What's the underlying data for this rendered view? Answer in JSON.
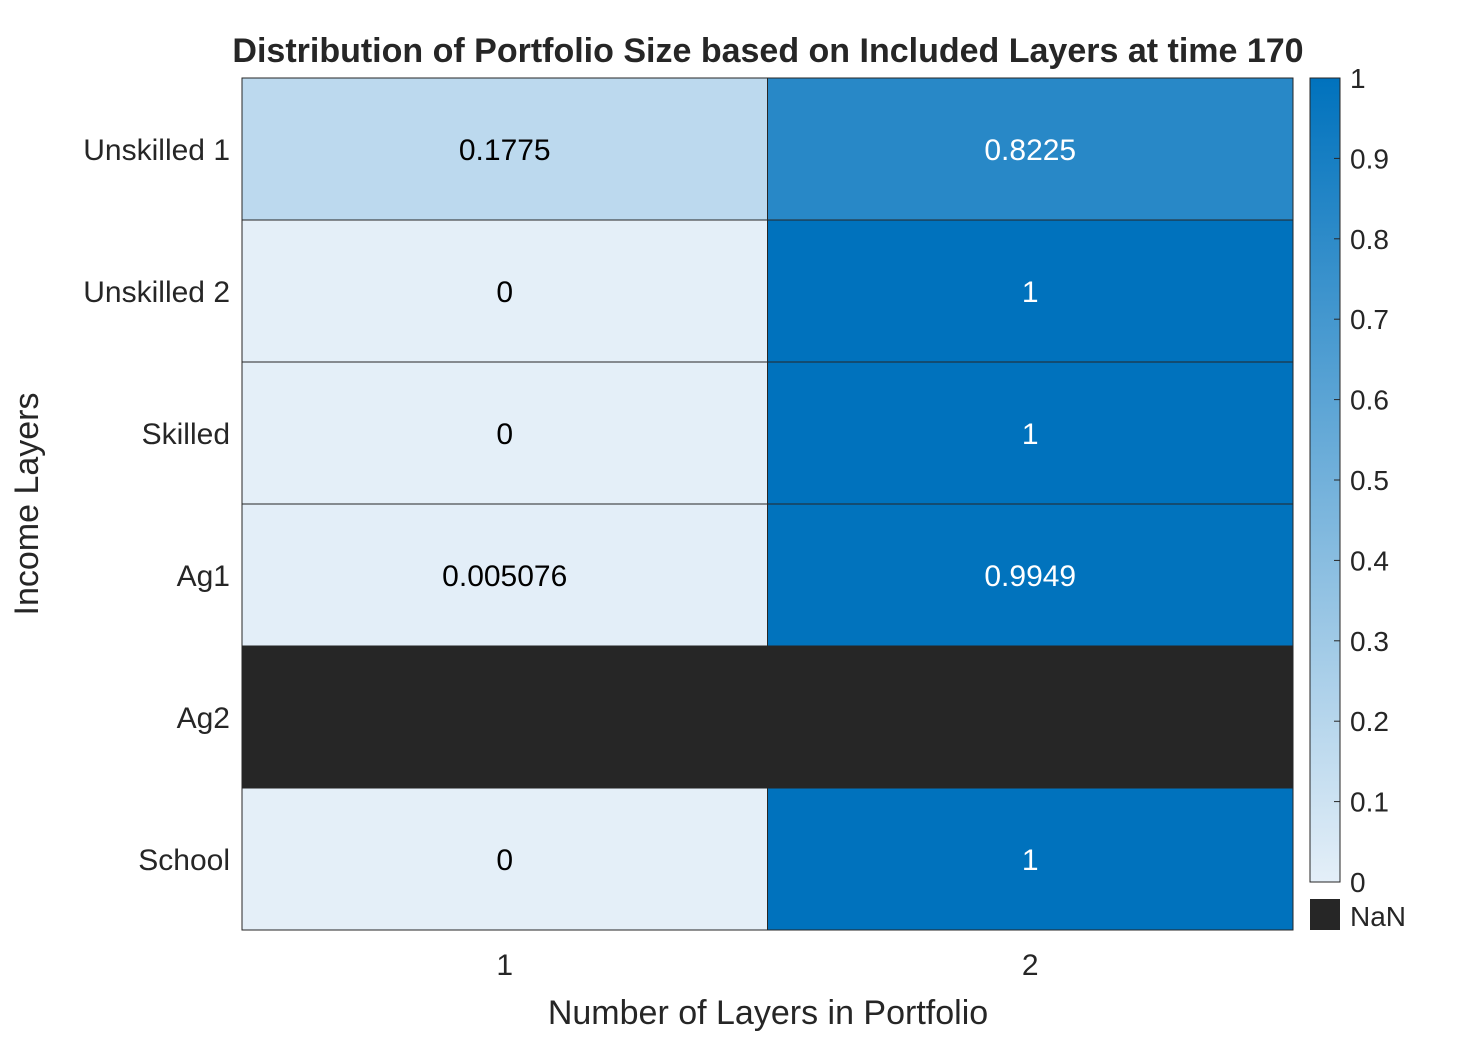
{
  "chart_data": {
    "type": "heatmap",
    "title": "Distribution of Portfolio Size based on Included Layers at time 170",
    "xlabel": "Number of Layers in Portfolio",
    "ylabel": "Income Layers",
    "x_categories": [
      "1",
      "2"
    ],
    "y_categories": [
      "Unskilled 1",
      "Unskilled 2",
      "Skilled",
      "Ag1",
      "Ag2",
      "School"
    ],
    "values": [
      [
        0.1775,
        0.8225
      ],
      [
        0,
        1
      ],
      [
        0,
        1
      ],
      [
        0.005076,
        0.9949
      ],
      [
        null,
        null
      ],
      [
        0,
        1
      ]
    ],
    "value_labels": [
      [
        "0.1775",
        "0.8225"
      ],
      [
        "0",
        "1"
      ],
      [
        "0",
        "1"
      ],
      [
        "0.005076",
        "0.9949"
      ],
      [
        "",
        ""
      ],
      [
        "0",
        "1"
      ]
    ],
    "colorbar": {
      "range": [
        0,
        1
      ],
      "ticks": [
        0,
        0.1,
        0.2,
        0.3,
        0.4,
        0.5,
        0.6,
        0.7,
        0.8,
        0.9,
        1
      ],
      "tick_labels": [
        "0",
        "0.1",
        "0.2",
        "0.3",
        "0.4",
        "0.5",
        "0.6",
        "0.7",
        "0.8",
        "0.9",
        "1"
      ],
      "color_low": "#e4eff8",
      "color_high": "#0072bd",
      "nan_color": "#262626",
      "nan_label": "NaN"
    }
  }
}
